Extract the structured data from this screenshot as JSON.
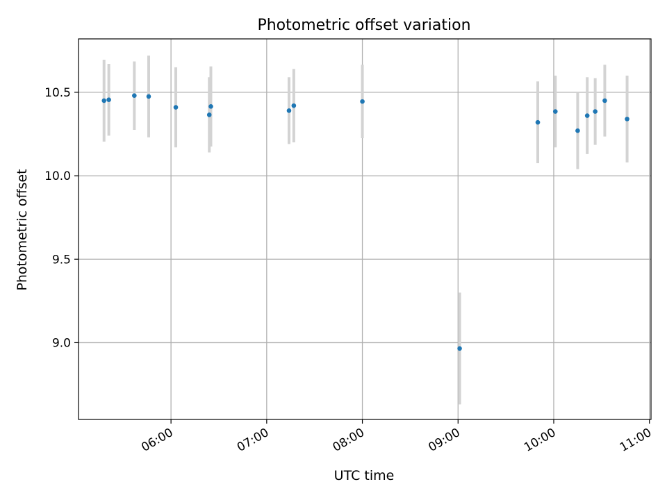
{
  "chart_data": {
    "type": "scatter",
    "title": "Photometric offset variation",
    "xlabel": "UTC time",
    "ylabel": "Photometric offset",
    "x_ticks": [
      "06:00",
      "07:00",
      "08:00",
      "09:00",
      "10:00",
      "11:00"
    ],
    "x_tick_times": [
      "06:00",
      "07:00",
      "08:00",
      "09:00",
      "10:00",
      "11:00"
    ],
    "xlim": [
      "05:02",
      "11:01"
    ],
    "y_ticks": [
      "9.0",
      "9.5",
      "10.0",
      "10.5"
    ],
    "y_tick_values": [
      9.0,
      9.5,
      10.0,
      10.5
    ],
    "ylim": [
      8.54,
      10.82
    ],
    "grid": true,
    "marker_color": "#1f77b4",
    "errorbar_color": "#d3d3d3",
    "points": [
      {
        "x": "05:18",
        "y": 10.45,
        "yerr": 0.245
      },
      {
        "x": "05:21",
        "y": 10.455,
        "yerr": 0.215
      },
      {
        "x": "05:37",
        "y": 10.48,
        "yerr": 0.205
      },
      {
        "x": "05:46",
        "y": 10.475,
        "yerr": 0.245
      },
      {
        "x": "06:03",
        "y": 10.41,
        "yerr": 0.24
      },
      {
        "x": "06:24",
        "y": 10.365,
        "yerr": 0.225
      },
      {
        "x": "06:25",
        "y": 10.415,
        "yerr": 0.24
      },
      {
        "x": "07:14",
        "y": 10.39,
        "yerr": 0.2
      },
      {
        "x": "07:17",
        "y": 10.42,
        "yerr": 0.22
      },
      {
        "x": "08:00",
        "y": 10.445,
        "yerr": 0.22
      },
      {
        "x": "09:01",
        "y": 8.965,
        "yerr": 0.335
      },
      {
        "x": "09:50",
        "y": 10.32,
        "yerr": 0.245
      },
      {
        "x": "10:01",
        "y": 10.385,
        "yerr": 0.215
      },
      {
        "x": "10:15",
        "y": 10.27,
        "yerr": 0.23
      },
      {
        "x": "10:21",
        "y": 10.36,
        "yerr": 0.23
      },
      {
        "x": "10:26",
        "y": 10.385,
        "yerr": 0.2
      },
      {
        "x": "10:32",
        "y": 10.45,
        "yerr": 0.215
      },
      {
        "x": "10:46",
        "y": 10.34,
        "yerr": 0.26
      }
    ]
  }
}
